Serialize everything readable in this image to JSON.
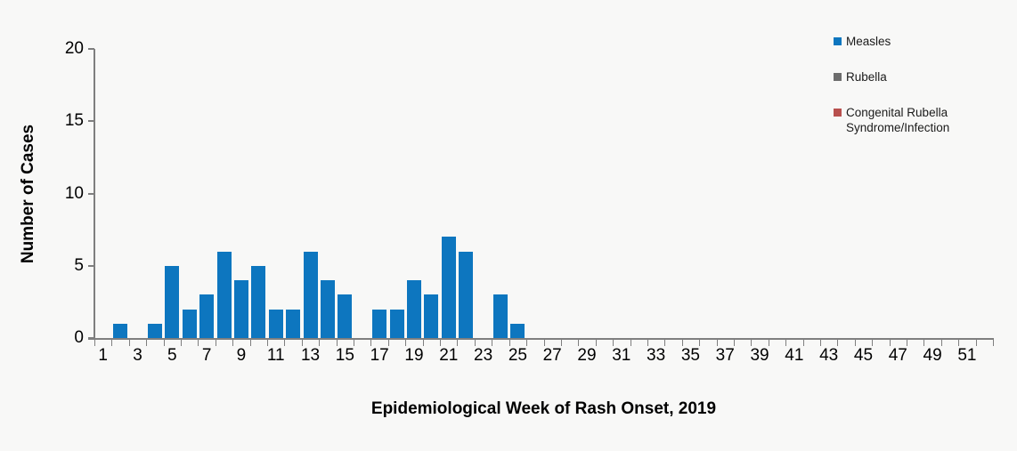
{
  "axes": {
    "x_title": "Epidemiological Week of Rash Onset, 2019",
    "y_title": "Number of Cases"
  },
  "legend": {
    "items": [
      {
        "label": "Measles",
        "color": "#0d76bf"
      },
      {
        "label": "Rubella",
        "color": "#6d6d6d"
      },
      {
        "label": "Congenital Rubella Syndrome/Infection",
        "color": "#b8504e"
      }
    ]
  },
  "colors": {
    "background": "#f8f8f7",
    "axis_line": "#7f7f7f",
    "text": "#000000",
    "measles_bar": "#0d76bf"
  },
  "chart_data": {
    "type": "bar",
    "title": "",
    "xlabel": "Epidemiological Week of Rash Onset, 2019",
    "ylabel": "Number of Cases",
    "categories": [
      1,
      2,
      3,
      4,
      5,
      6,
      7,
      8,
      9,
      10,
      11,
      12,
      13,
      14,
      15,
      16,
      17,
      18,
      19,
      20,
      21,
      22,
      23,
      24,
      25,
      26,
      27,
      28,
      29,
      30,
      31,
      32,
      33,
      34,
      35,
      36,
      37,
      38,
      39,
      40,
      41,
      42,
      43,
      44,
      45,
      46,
      47,
      48,
      49,
      50,
      51,
      52
    ],
    "x_tick_labels_shown": [
      1,
      3,
      5,
      7,
      9,
      11,
      13,
      15,
      17,
      19,
      21,
      23,
      25,
      27,
      29,
      31,
      33,
      35,
      37,
      39,
      41,
      43,
      45,
      47,
      49,
      51
    ],
    "ylim": [
      0,
      20
    ],
    "yticks": [
      0,
      5,
      10,
      15,
      20
    ],
    "grid": false,
    "legend_position": "top-right",
    "series": [
      {
        "name": "Measles",
        "color": "#0d76bf",
        "values": [
          0,
          1,
          0,
          1,
          5,
          2,
          3,
          6,
          4,
          5,
          2,
          2,
          6,
          4,
          3,
          0,
          2,
          2,
          4,
          3,
          7,
          6,
          0,
          3,
          1,
          0,
          0,
          0,
          0,
          0,
          0,
          0,
          0,
          0,
          0,
          0,
          0,
          0,
          0,
          0,
          0,
          0,
          0,
          0,
          0,
          0,
          0,
          0,
          0,
          0,
          0,
          0
        ]
      },
      {
        "name": "Rubella",
        "color": "#6d6d6d",
        "values": [
          0,
          0,
          0,
          0,
          0,
          0,
          0,
          0,
          0,
          0,
          0,
          0,
          0,
          0,
          0,
          0,
          0,
          0,
          0,
          0,
          0,
          0,
          0,
          0,
          0,
          0,
          0,
          0,
          0,
          0,
          0,
          0,
          0,
          0,
          0,
          0,
          0,
          0,
          0,
          0,
          0,
          0,
          0,
          0,
          0,
          0,
          0,
          0,
          0,
          0,
          0,
          0
        ]
      },
      {
        "name": "Congenital Rubella Syndrome/Infection",
        "color": "#b8504e",
        "values": [
          0,
          0,
          0,
          0,
          0,
          0,
          0,
          0,
          0,
          0,
          0,
          0,
          0,
          0,
          0,
          0,
          0,
          0,
          0,
          0,
          0,
          0,
          0,
          0,
          0,
          0,
          0,
          0,
          0,
          0,
          0,
          0,
          0,
          0,
          0,
          0,
          0,
          0,
          0,
          0,
          0,
          0,
          0,
          0,
          0,
          0,
          0,
          0,
          0,
          0,
          0,
          0
        ]
      }
    ]
  }
}
